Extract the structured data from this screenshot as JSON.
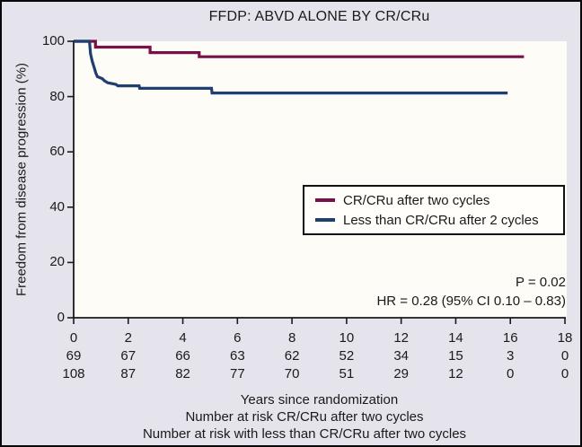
{
  "colors": {
    "figure_background": "#e5e4ed",
    "plot_background": "#fdfcf7",
    "axis": "#1a1a1a",
    "text": "#1a1a1a",
    "cr_cru_line": "#7a104a",
    "less_than_cr_cru_line": "#1f406f",
    "legend_border": "#111111"
  },
  "chart_data": {
    "type": "line",
    "subtype": "kaplan-meier-step-curves",
    "title": "FFDP: ABVD ALONE BY CR/CRu",
    "xlabel": "Years since randomization",
    "ylabel": "Freedom from disease progression (%)",
    "xlim": [
      0,
      18
    ],
    "ylim": [
      0,
      100
    ],
    "x_ticks": [
      0,
      2,
      4,
      6,
      8,
      10,
      12,
      14,
      16,
      18
    ],
    "y_ticks": [
      0,
      20,
      40,
      60,
      80,
      100
    ],
    "grid": false,
    "legend_position": "middle-right",
    "series": [
      {
        "name": "CR/CRu after two cycles",
        "color": "#7a104a",
        "points": [
          [
            0,
            100
          ],
          [
            0.8,
            100
          ],
          [
            0.8,
            97.9
          ],
          [
            2.8,
            97.9
          ],
          [
            2.8,
            95.9
          ],
          [
            4.6,
            95.9
          ],
          [
            4.6,
            94.4
          ],
          [
            16.5,
            94.4
          ]
        ]
      },
      {
        "name": "Less than CR/CRu after 2 cycles",
        "color": "#1f406f",
        "points": [
          [
            0,
            100
          ],
          [
            0.58,
            100
          ],
          [
            0.62,
            95.5
          ],
          [
            0.68,
            92.8
          ],
          [
            0.75,
            90.6
          ],
          [
            0.81,
            88.6
          ],
          [
            0.87,
            87.2
          ],
          [
            1.05,
            86.5
          ],
          [
            1.13,
            85.7
          ],
          [
            1.25,
            85.0
          ],
          [
            1.55,
            84.4
          ],
          [
            1.62,
            83.9
          ],
          [
            2.4,
            83.9
          ],
          [
            2.42,
            83.0
          ],
          [
            5.05,
            83.0
          ],
          [
            5.07,
            81.3
          ],
          [
            15.9,
            81.3
          ]
        ]
      }
    ],
    "annotations": {
      "p_value": "P = 0.02",
      "hazard_ratio": "HR = 0.28 (95% CI 0.10 – 0.83)"
    },
    "at_risk": {
      "x": [
        0,
        2,
        4,
        6,
        8,
        10,
        12,
        14,
        16,
        18
      ],
      "rows": [
        {
          "name": "CR/CRu after two cycles",
          "values": [
            69,
            67,
            66,
            63,
            62,
            52,
            34,
            15,
            3,
            0
          ]
        },
        {
          "name": "With less than CR/CRu after two cycles",
          "values": [
            108,
            87,
            82,
            77,
            70,
            51,
            29,
            12,
            0,
            0
          ]
        }
      ]
    },
    "captions": [
      "Number at risk CR/CRu after two cycles",
      "Number at risk with less than CR/CRu after two cycles"
    ]
  }
}
